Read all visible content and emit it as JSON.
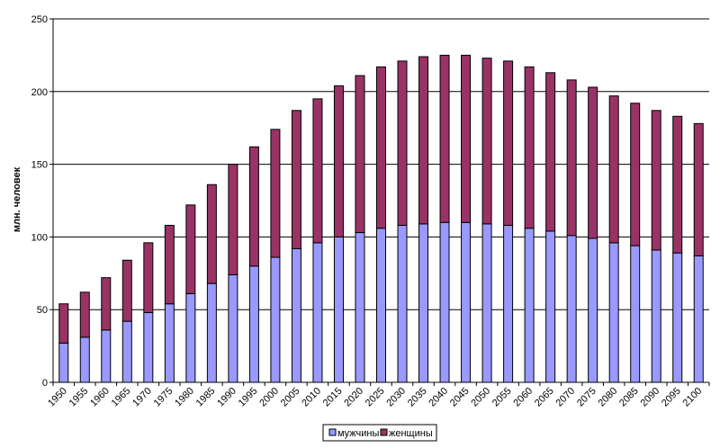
{
  "chart_data": {
    "type": "bar",
    "stacked": true,
    "title": "",
    "xlabel": "",
    "ylabel": "млн. человек",
    "ylim": [
      0,
      250
    ],
    "yticks": [
      0,
      50,
      100,
      150,
      200,
      250
    ],
    "grid": true,
    "legend_position": "bottom",
    "categories": [
      "1950",
      "1955",
      "1960",
      "1965",
      "1970",
      "1975",
      "1980",
      "1985",
      "1990",
      "1995",
      "2000",
      "2005",
      "2010",
      "2015",
      "2020",
      "2025",
      "2030",
      "2035",
      "2040",
      "2045",
      "2050",
      "2055",
      "2060",
      "2065",
      "2070",
      "2075",
      "2080",
      "2085",
      "2090",
      "2095",
      "2100"
    ],
    "series": [
      {
        "name": "мужчины",
        "color": "#9999ff",
        "values": [
          27,
          31,
          36,
          42,
          48,
          54,
          61,
          68,
          74,
          80,
          86,
          92,
          96,
          100,
          103,
          106,
          108,
          109,
          110,
          110,
          109,
          108,
          106,
          104,
          101,
          99,
          96,
          94,
          91,
          89,
          87
        ]
      },
      {
        "name": "женщины",
        "color": "#993366",
        "values": [
          27,
          31,
          36,
          42,
          48,
          54,
          61,
          68,
          76,
          82,
          88,
          95,
          99,
          104,
          108,
          111,
          113,
          115,
          115,
          115,
          114,
          113,
          111,
          109,
          107,
          104,
          101,
          98,
          96,
          94,
          91
        ]
      }
    ]
  }
}
